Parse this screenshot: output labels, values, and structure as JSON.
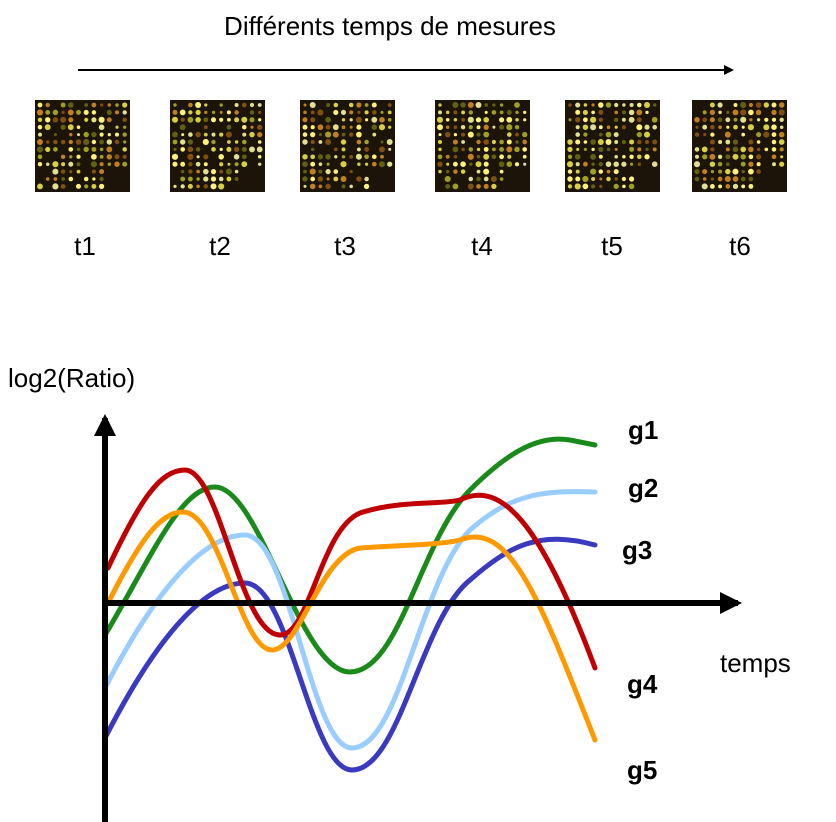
{
  "title": "Différents temps de mesures",
  "time_points": [
    "t1",
    "t2",
    "t3",
    "t4",
    "t5",
    "t6"
  ],
  "y_axis_label": "log2(Ratio)",
  "x_axis_label": "temps",
  "genes": [
    {
      "label": "g1",
      "color": "#1a8a1a"
    },
    {
      "label": "g2",
      "color": "#99ccff"
    },
    {
      "label": "g3",
      "color": "#3a3ac0"
    },
    {
      "label": "g4",
      "color": "#c00000"
    },
    {
      "label": "g5",
      "color": "#ff9900"
    }
  ]
}
